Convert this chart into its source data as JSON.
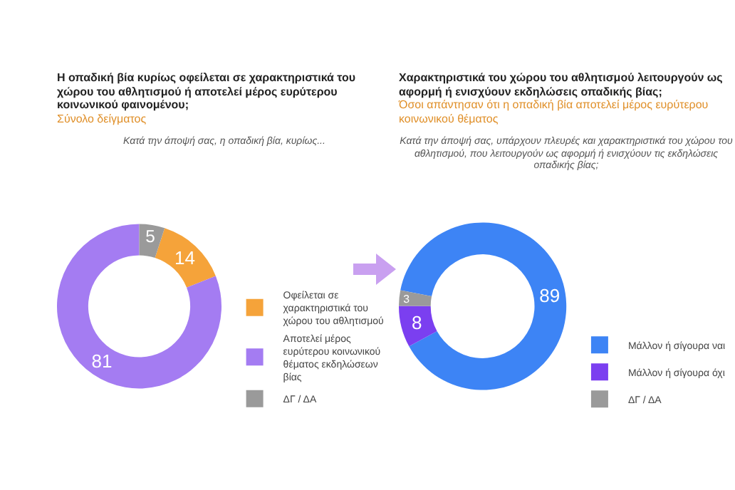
{
  "chart_data": [
    {
      "type": "donut",
      "title": "Η οπαδική βία κυρίως οφείλεται σε χαρακτηριστικά του χώρου του αθλητισμού ή αποτελεί μέρος ευρύτερου κοινωνικού φαινομένου;",
      "subtitle": "Σύνολο δείγματος",
      "annotations": [
        "Κατά την άποψή σας, η οπαδική βία, κυρίως..."
      ],
      "categories": [
        "Οφείλεται σε χαρακτηριστικά του χώρου του αθλητισμού",
        "Αποτελεί μέρος ευρύτερου κοινωνικού θέματος εκδηλώσεων βίας",
        "ΔΓ / ΔΑ"
      ],
      "values": [
        14,
        81,
        5
      ],
      "colors": [
        "#f5a33a",
        "#a47cf2",
        "#9a9a9a"
      ],
      "data_labels": true,
      "legend": "bottom right"
    },
    {
      "type": "donut",
      "title": "Χαρακτηριστικά του χώρου του αθλητισμού λειτουργούν ως αφορμή ή ενισχύουν εκδηλώσεις οπαδικής βίας;",
      "subtitle": "Όσοι απάντησαν ότι η οπαδική βία αποτελεί μέρος ευρύτερου κοινωνικού θέματος",
      "annotations": [
        "Κατά την άποψή σας, υπάρχουν πλευρές και χαρακτηριστικά του χώρου του αθλητισμού, που λειτουργούν ως αφορμή ή ενισχύουν τις εκδηλώσεις οπαδικής βίας;"
      ],
      "categories": [
        "Μάλλον ή σίγουρα ναι",
        "Μάλλον ή σίγουρα όχι",
        "ΔΓ / ΔΑ"
      ],
      "values": [
        89,
        8,
        3
      ],
      "colors": [
        "#3d84f5",
        "#7b3ff0",
        "#9a9a9a"
      ],
      "data_labels": true,
      "legend": "bottom right"
    }
  ]
}
